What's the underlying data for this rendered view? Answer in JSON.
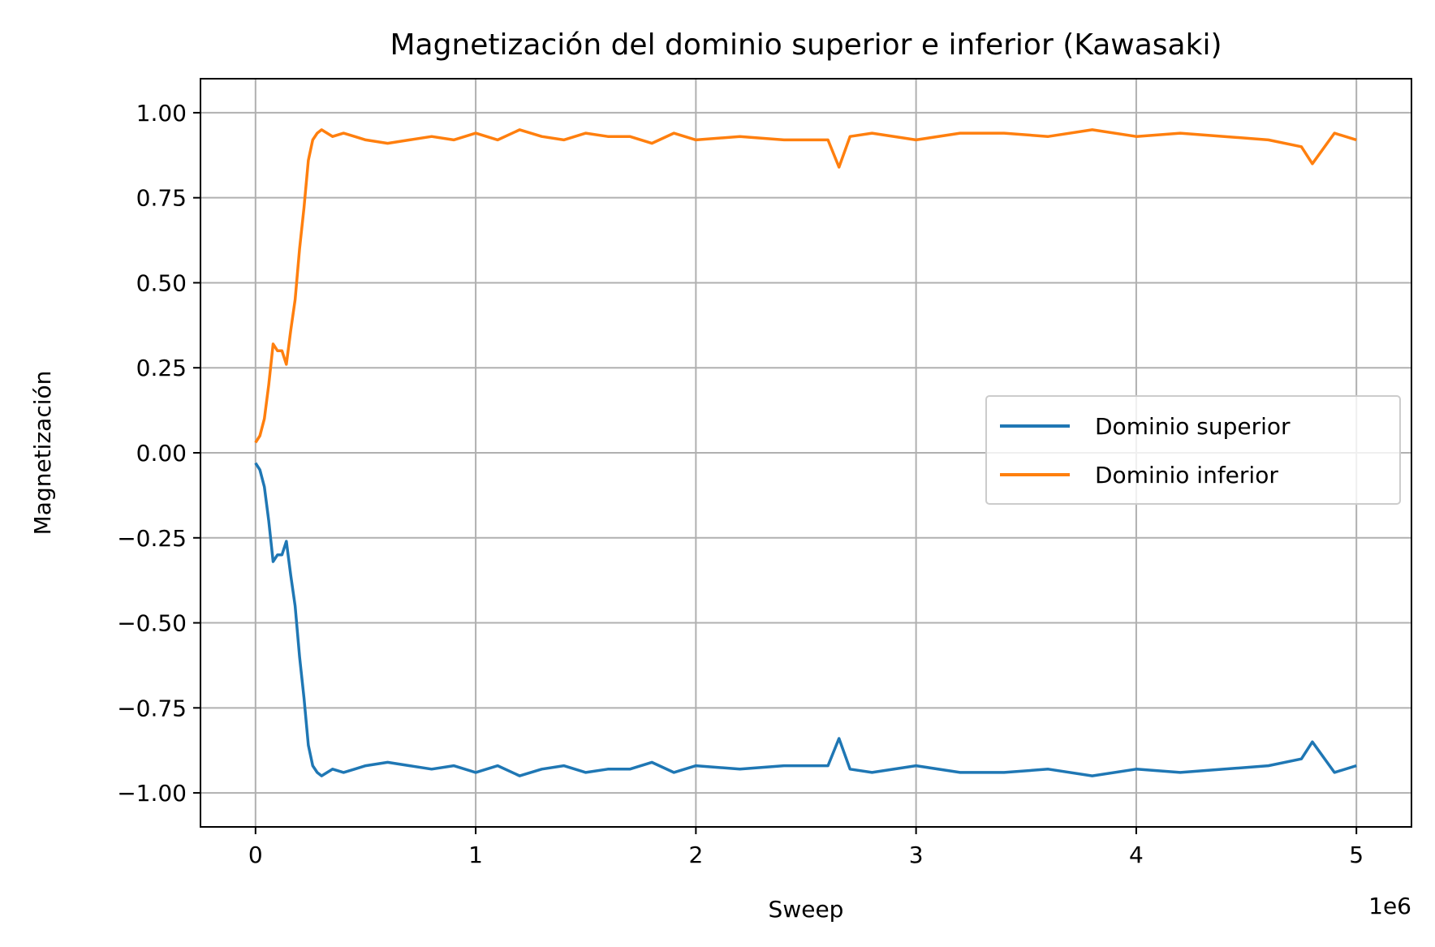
{
  "chart_data": {
    "type": "line",
    "title": "Magnetización del dominio superior e inferior (Kawasaki)",
    "xlabel": "Sweep",
    "ylabel": "Magnetización",
    "x_offset_label": "1e6",
    "x_scale": 1000000,
    "xlim": [
      -250000,
      5250000
    ],
    "ylim": [
      -1.1,
      1.1
    ],
    "x_ticks": [
      0,
      1000000,
      2000000,
      3000000,
      4000000,
      5000000
    ],
    "x_tick_labels": [
      "0",
      "1",
      "2",
      "3",
      "4",
      "5"
    ],
    "y_ticks": [
      1.0,
      0.75,
      0.5,
      0.25,
      0.0,
      -0.25,
      -0.5,
      -0.75,
      -1.0
    ],
    "y_tick_labels": [
      "1.00",
      "0.75",
      "0.50",
      "0.25",
      "0.00",
      "−0.25",
      "−0.50",
      "−0.75",
      "−1.00"
    ],
    "grid": true,
    "legend_position": "center-right",
    "series": [
      {
        "name": "Dominio superior",
        "color": "#1f77b4",
        "x": [
          0,
          20000,
          40000,
          60000,
          80000,
          100000,
          120000,
          140000,
          160000,
          180000,
          200000,
          220000,
          240000,
          260000,
          280000,
          300000,
          350000,
          400000,
          450000,
          500000,
          600000,
          700000,
          800000,
          900000,
          1000000,
          1100000,
          1200000,
          1300000,
          1400000,
          1500000,
          1600000,
          1700000,
          1800000,
          1900000,
          2000000,
          2200000,
          2400000,
          2600000,
          2650000,
          2700000,
          2800000,
          3000000,
          3200000,
          3400000,
          3600000,
          3800000,
          4000000,
          4200000,
          4400000,
          4600000,
          4750000,
          4800000,
          4900000,
          5000000
        ],
        "y": [
          -0.03,
          -0.05,
          -0.1,
          -0.2,
          -0.32,
          -0.3,
          -0.3,
          -0.26,
          -0.36,
          -0.45,
          -0.6,
          -0.72,
          -0.86,
          -0.92,
          -0.94,
          -0.95,
          -0.93,
          -0.94,
          -0.93,
          -0.92,
          -0.91,
          -0.92,
          -0.93,
          -0.92,
          -0.94,
          -0.92,
          -0.95,
          -0.93,
          -0.92,
          -0.94,
          -0.93,
          -0.93,
          -0.91,
          -0.94,
          -0.92,
          -0.93,
          -0.92,
          -0.92,
          -0.84,
          -0.93,
          -0.94,
          -0.92,
          -0.94,
          -0.94,
          -0.93,
          -0.95,
          -0.93,
          -0.94,
          -0.93,
          -0.92,
          -0.9,
          -0.85,
          -0.94,
          -0.92
        ]
      },
      {
        "name": "Dominio inferior",
        "color": "#ff7f0e",
        "x": [
          0,
          20000,
          40000,
          60000,
          80000,
          100000,
          120000,
          140000,
          160000,
          180000,
          200000,
          220000,
          240000,
          260000,
          280000,
          300000,
          350000,
          400000,
          450000,
          500000,
          600000,
          700000,
          800000,
          900000,
          1000000,
          1100000,
          1200000,
          1300000,
          1400000,
          1500000,
          1600000,
          1700000,
          1800000,
          1900000,
          2000000,
          2200000,
          2400000,
          2600000,
          2650000,
          2700000,
          2800000,
          3000000,
          3200000,
          3400000,
          3600000,
          3800000,
          4000000,
          4200000,
          4400000,
          4600000,
          4750000,
          4800000,
          4900000,
          5000000
        ],
        "y": [
          0.03,
          0.05,
          0.1,
          0.2,
          0.32,
          0.3,
          0.3,
          0.26,
          0.36,
          0.45,
          0.6,
          0.72,
          0.86,
          0.92,
          0.94,
          0.95,
          0.93,
          0.94,
          0.93,
          0.92,
          0.91,
          0.92,
          0.93,
          0.92,
          0.94,
          0.92,
          0.95,
          0.93,
          0.92,
          0.94,
          0.93,
          0.93,
          0.91,
          0.94,
          0.92,
          0.93,
          0.92,
          0.92,
          0.84,
          0.93,
          0.94,
          0.92,
          0.94,
          0.94,
          0.93,
          0.95,
          0.93,
          0.94,
          0.93,
          0.92,
          0.9,
          0.85,
          0.94,
          0.92
        ]
      }
    ]
  }
}
